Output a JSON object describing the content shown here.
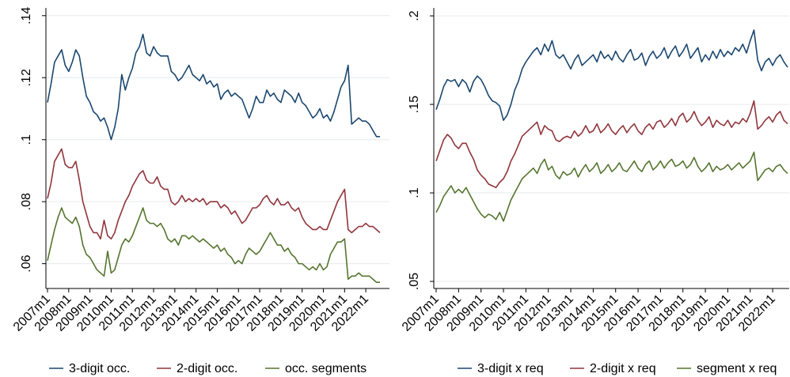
{
  "chart_data": [
    {
      "type": "line",
      "x": [
        "2007m1",
        "2007m3",
        "2007m5",
        "2007m7",
        "2007m9",
        "2007m11",
        "2008m1",
        "2008m3",
        "2008m5",
        "2008m7",
        "2008m9",
        "2008m11",
        "2009m1",
        "2009m3",
        "2009m5",
        "2009m7",
        "2009m9",
        "2009m11",
        "2010m1",
        "2010m3",
        "2010m5",
        "2010m7",
        "2010m9",
        "2010m11",
        "2011m1",
        "2011m3",
        "2011m5",
        "2011m7",
        "2011m9",
        "2011m11",
        "2012m1",
        "2012m3",
        "2012m5",
        "2012m7",
        "2012m9",
        "2012m11",
        "2013m1",
        "2013m3",
        "2013m5",
        "2013m7",
        "2013m9",
        "2013m11",
        "2014m1",
        "2014m3",
        "2014m5",
        "2014m7",
        "2014m9",
        "2014m11",
        "2015m1",
        "2015m3",
        "2015m5",
        "2015m7",
        "2015m9",
        "2015m11",
        "2016m1",
        "2016m3",
        "2016m5",
        "2016m7",
        "2016m9",
        "2016m11",
        "2017m1",
        "2017m3",
        "2017m5",
        "2017m7",
        "2017m9",
        "2017m11",
        "2018m1",
        "2018m3",
        "2018m5",
        "2018m7",
        "2018m9",
        "2018m11",
        "2019m1",
        "2019m3",
        "2019m5",
        "2019m7",
        "2019m9",
        "2019m11",
        "2020m1",
        "2020m3",
        "2020m5",
        "2020m7",
        "2020m9",
        "2020m11",
        "2021m1",
        "2021m3",
        "2021m5",
        "2021m7",
        "2021m9",
        "2021m11",
        "2022m1",
        "2022m3",
        "2022m5",
        "2022m7",
        "2022m9"
      ],
      "ylim": [
        0.052,
        0.1425
      ],
      "yticks": [
        {
          "value": 0.06,
          "label": ".06"
        },
        {
          "value": 0.08,
          "label": ".08"
        },
        {
          "value": 0.1,
          "label": ".1"
        },
        {
          "value": 0.12,
          "label": ".12"
        },
        {
          "value": 0.14,
          "label": ".14"
        }
      ],
      "grid": true,
      "legend": "bottom",
      "series": [
        {
          "name": "3-digit occ.",
          "color": "#1a476f",
          "values": [
            0.112,
            0.118,
            0.125,
            0.127,
            0.129,
            0.124,
            0.122,
            0.125,
            0.129,
            0.127,
            0.12,
            0.114,
            0.112,
            0.109,
            0.108,
            0.106,
            0.107,
            0.104,
            0.1,
            0.104,
            0.11,
            0.121,
            0.116,
            0.12,
            0.123,
            0.128,
            0.13,
            0.134,
            0.128,
            0.127,
            0.13,
            0.128,
            0.127,
            0.127,
            0.127,
            0.122,
            0.121,
            0.119,
            0.12,
            0.122,
            0.124,
            0.121,
            0.12,
            0.119,
            0.121,
            0.118,
            0.119,
            0.117,
            0.118,
            0.113,
            0.115,
            0.116,
            0.114,
            0.115,
            0.114,
            0.113,
            0.11,
            0.107,
            0.11,
            0.114,
            0.112,
            0.112,
            0.116,
            0.114,
            0.115,
            0.113,
            0.112,
            0.116,
            0.115,
            0.114,
            0.112,
            0.115,
            0.112,
            0.111,
            0.109,
            0.107,
            0.108,
            0.11,
            0.107,
            0.108,
            0.106,
            0.109,
            0.113,
            0.117,
            0.119,
            0.124,
            0.105,
            0.106,
            0.107,
            0.106,
            0.106,
            0.105,
            0.103,
            0.101,
            0.101
          ]
        },
        {
          "name": "2-digit occ.",
          "color": "#90353b",
          "values": [
            0.081,
            0.086,
            0.093,
            0.095,
            0.097,
            0.092,
            0.091,
            0.091,
            0.093,
            0.087,
            0.08,
            0.076,
            0.072,
            0.07,
            0.07,
            0.068,
            0.074,
            0.069,
            0.068,
            0.07,
            0.074,
            0.077,
            0.08,
            0.082,
            0.085,
            0.087,
            0.089,
            0.09,
            0.087,
            0.086,
            0.086,
            0.088,
            0.085,
            0.084,
            0.084,
            0.08,
            0.079,
            0.08,
            0.082,
            0.08,
            0.081,
            0.08,
            0.081,
            0.08,
            0.081,
            0.079,
            0.08,
            0.08,
            0.08,
            0.078,
            0.079,
            0.078,
            0.076,
            0.077,
            0.075,
            0.073,
            0.074,
            0.076,
            0.078,
            0.078,
            0.079,
            0.081,
            0.082,
            0.08,
            0.079,
            0.081,
            0.079,
            0.079,
            0.08,
            0.078,
            0.077,
            0.078,
            0.075,
            0.073,
            0.072,
            0.071,
            0.071,
            0.072,
            0.071,
            0.071,
            0.074,
            0.077,
            0.08,
            0.082,
            0.084,
            0.071,
            0.07,
            0.071,
            0.072,
            0.072,
            0.073,
            0.072,
            0.072,
            0.071,
            0.07
          ]
        },
        {
          "name": "occ. segments",
          "color": "#55752f",
          "values": [
            0.061,
            0.066,
            0.071,
            0.075,
            0.078,
            0.075,
            0.074,
            0.073,
            0.075,
            0.072,
            0.066,
            0.063,
            0.062,
            0.06,
            0.058,
            0.057,
            0.056,
            0.064,
            0.057,
            0.058,
            0.062,
            0.066,
            0.068,
            0.067,
            0.069,
            0.072,
            0.075,
            0.078,
            0.074,
            0.073,
            0.073,
            0.072,
            0.073,
            0.071,
            0.068,
            0.067,
            0.068,
            0.066,
            0.069,
            0.069,
            0.068,
            0.069,
            0.068,
            0.067,
            0.068,
            0.067,
            0.066,
            0.065,
            0.066,
            0.064,
            0.065,
            0.063,
            0.062,
            0.06,
            0.061,
            0.06,
            0.063,
            0.065,
            0.064,
            0.063,
            0.064,
            0.066,
            0.068,
            0.07,
            0.068,
            0.066,
            0.066,
            0.064,
            0.065,
            0.063,
            0.062,
            0.06,
            0.06,
            0.059,
            0.058,
            0.059,
            0.058,
            0.06,
            0.058,
            0.059,
            0.063,
            0.065,
            0.067,
            0.067,
            0.068,
            0.055,
            0.056,
            0.056,
            0.057,
            0.056,
            0.056,
            0.056,
            0.055,
            0.054,
            0.054
          ]
        }
      ]
    },
    {
      "type": "line",
      "x": [
        "2007m1",
        "2007m3",
        "2007m5",
        "2007m7",
        "2007m9",
        "2007m11",
        "2008m1",
        "2008m3",
        "2008m5",
        "2008m7",
        "2008m9",
        "2008m11",
        "2009m1",
        "2009m3",
        "2009m5",
        "2009m7",
        "2009m9",
        "2009m11",
        "2010m1",
        "2010m3",
        "2010m5",
        "2010m7",
        "2010m9",
        "2010m11",
        "2011m1",
        "2011m3",
        "2011m5",
        "2011m7",
        "2011m9",
        "2011m11",
        "2012m1",
        "2012m3",
        "2012m5",
        "2012m7",
        "2012m9",
        "2012m11",
        "2013m1",
        "2013m3",
        "2013m5",
        "2013m7",
        "2013m9",
        "2013m11",
        "2014m1",
        "2014m3",
        "2014m5",
        "2014m7",
        "2014m9",
        "2014m11",
        "2015m1",
        "2015m3",
        "2015m5",
        "2015m7",
        "2015m9",
        "2015m11",
        "2016m1",
        "2016m3",
        "2016m5",
        "2016m7",
        "2016m9",
        "2016m11",
        "2017m1",
        "2017m3",
        "2017m5",
        "2017m7",
        "2017m9",
        "2017m11",
        "2018m1",
        "2018m3",
        "2018m5",
        "2018m7",
        "2018m9",
        "2018m11",
        "2019m1",
        "2019m3",
        "2019m5",
        "2019m7",
        "2019m9",
        "2019m11",
        "2020m1",
        "2020m3",
        "2020m5",
        "2020m7",
        "2020m9",
        "2020m11",
        "2021m1",
        "2021m3",
        "2021m5",
        "2021m7",
        "2021m9",
        "2021m11",
        "2022m1",
        "2022m3",
        "2022m5",
        "2022m7",
        "2022m9"
      ],
      "ylim": [
        0.046,
        0.2045
      ],
      "yticks": [
        {
          "value": 0.05,
          "label": ".05"
        },
        {
          "value": 0.1,
          "label": ".1"
        },
        {
          "value": 0.15,
          "label": ".15"
        },
        {
          "value": 0.2,
          "label": ".2"
        }
      ],
      "grid": true,
      "legend": "bottom",
      "series": [
        {
          "name": "3-digit x req",
          "color": "#1a476f",
          "values": [
            0.147,
            0.153,
            0.16,
            0.164,
            0.163,
            0.164,
            0.16,
            0.164,
            0.162,
            0.157,
            0.163,
            0.166,
            0.164,
            0.16,
            0.155,
            0.152,
            0.151,
            0.149,
            0.141,
            0.144,
            0.15,
            0.158,
            0.163,
            0.17,
            0.174,
            0.177,
            0.18,
            0.182,
            0.178,
            0.184,
            0.18,
            0.186,
            0.178,
            0.176,
            0.178,
            0.174,
            0.17,
            0.175,
            0.178,
            0.172,
            0.174,
            0.176,
            0.178,
            0.174,
            0.18,
            0.176,
            0.178,
            0.175,
            0.18,
            0.176,
            0.174,
            0.178,
            0.181,
            0.175,
            0.176,
            0.179,
            0.172,
            0.177,
            0.18,
            0.176,
            0.178,
            0.182,
            0.176,
            0.18,
            0.183,
            0.177,
            0.18,
            0.184,
            0.176,
            0.179,
            0.182,
            0.174,
            0.178,
            0.175,
            0.18,
            0.176,
            0.181,
            0.177,
            0.18,
            0.178,
            0.182,
            0.18,
            0.184,
            0.179,
            0.186,
            0.192,
            0.175,
            0.169,
            0.174,
            0.176,
            0.172,
            0.176,
            0.178,
            0.174,
            0.171
          ]
        },
        {
          "name": "2-digit x req",
          "color": "#90353b",
          "values": [
            0.118,
            0.124,
            0.13,
            0.133,
            0.131,
            0.127,
            0.125,
            0.128,
            0.128,
            0.123,
            0.119,
            0.113,
            0.11,
            0.108,
            0.105,
            0.104,
            0.103,
            0.106,
            0.108,
            0.112,
            0.118,
            0.122,
            0.127,
            0.132,
            0.134,
            0.136,
            0.138,
            0.14,
            0.133,
            0.138,
            0.136,
            0.135,
            0.13,
            0.129,
            0.131,
            0.132,
            0.131,
            0.135,
            0.132,
            0.134,
            0.138,
            0.134,
            0.135,
            0.139,
            0.134,
            0.136,
            0.139,
            0.135,
            0.133,
            0.136,
            0.138,
            0.134,
            0.137,
            0.139,
            0.135,
            0.133,
            0.137,
            0.139,
            0.136,
            0.14,
            0.141,
            0.137,
            0.139,
            0.142,
            0.138,
            0.143,
            0.145,
            0.14,
            0.142,
            0.146,
            0.141,
            0.138,
            0.14,
            0.143,
            0.137,
            0.141,
            0.139,
            0.138,
            0.141,
            0.137,
            0.14,
            0.139,
            0.142,
            0.14,
            0.145,
            0.152,
            0.136,
            0.138,
            0.141,
            0.143,
            0.14,
            0.144,
            0.146,
            0.141,
            0.139
          ]
        },
        {
          "name": "segment x req",
          "color": "#55752f",
          "values": [
            0.089,
            0.093,
            0.098,
            0.101,
            0.104,
            0.1,
            0.102,
            0.1,
            0.103,
            0.099,
            0.095,
            0.091,
            0.088,
            0.086,
            0.088,
            0.087,
            0.085,
            0.089,
            0.084,
            0.09,
            0.096,
            0.1,
            0.104,
            0.108,
            0.11,
            0.112,
            0.114,
            0.111,
            0.116,
            0.119,
            0.113,
            0.115,
            0.11,
            0.108,
            0.112,
            0.11,
            0.111,
            0.114,
            0.109,
            0.113,
            0.116,
            0.112,
            0.114,
            0.117,
            0.111,
            0.113,
            0.116,
            0.112,
            0.114,
            0.117,
            0.113,
            0.112,
            0.115,
            0.118,
            0.114,
            0.112,
            0.116,
            0.118,
            0.113,
            0.115,
            0.118,
            0.114,
            0.117,
            0.119,
            0.115,
            0.116,
            0.118,
            0.114,
            0.116,
            0.12,
            0.115,
            0.112,
            0.114,
            0.117,
            0.112,
            0.115,
            0.113,
            0.114,
            0.116,
            0.113,
            0.115,
            0.117,
            0.114,
            0.116,
            0.118,
            0.123,
            0.107,
            0.11,
            0.113,
            0.114,
            0.112,
            0.115,
            0.116,
            0.113,
            0.111
          ]
        }
      ]
    }
  ]
}
